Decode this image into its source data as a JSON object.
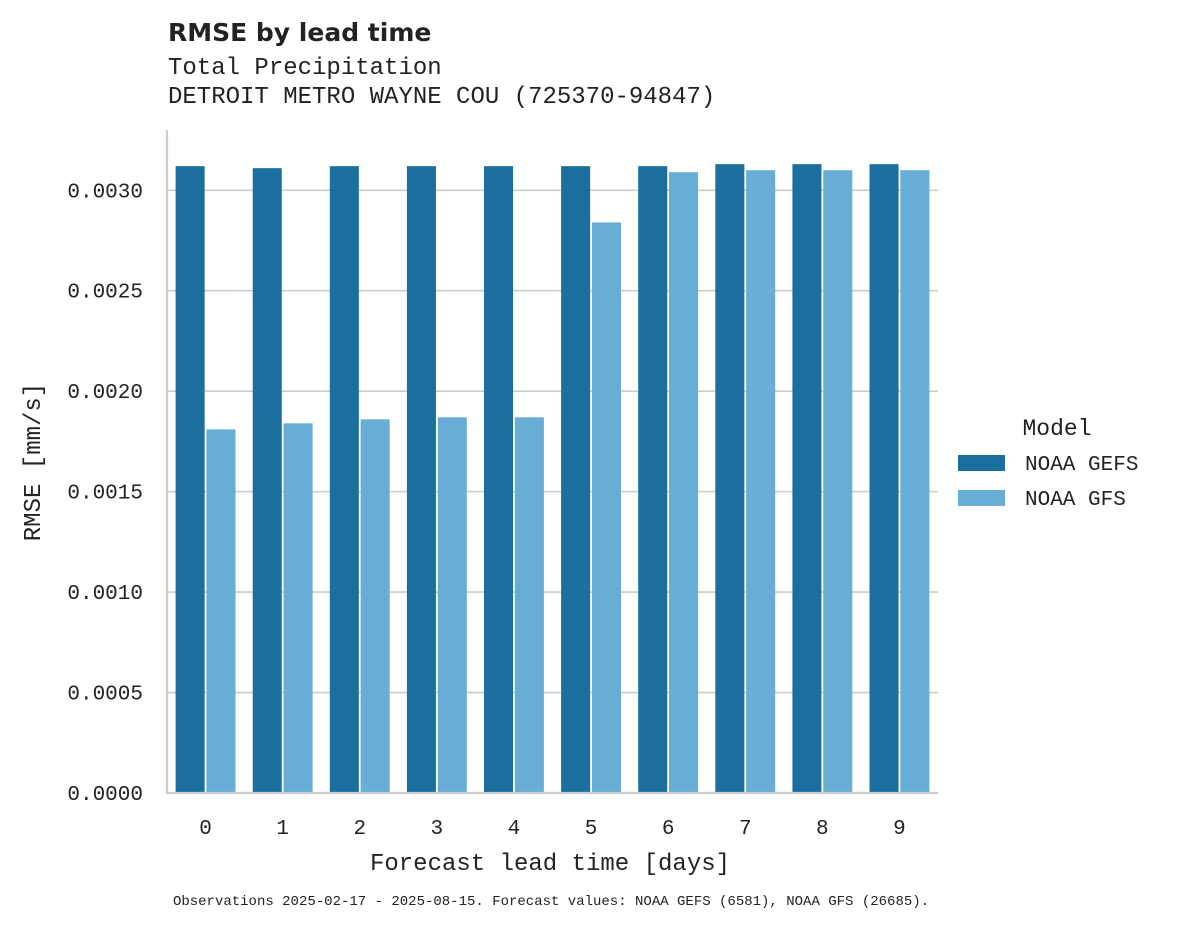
{
  "chart_data": {
    "type": "bar",
    "title": "RMSE by lead time",
    "subtitle_lines": [
      "Total Precipitation",
      "DETROIT METRO WAYNE COU (725370-94847)"
    ],
    "xlabel": "Forecast lead time [days]",
    "ylabel": "RMSE [mm/s]",
    "ylim": [
      0,
      0.0033
    ],
    "yticks": [
      "0.0000",
      "0.0005",
      "0.0010",
      "0.0015",
      "0.0020",
      "0.0025",
      "0.0030"
    ],
    "categories": [
      "0",
      "1",
      "2",
      "3",
      "4",
      "5",
      "6",
      "7",
      "8",
      "9"
    ],
    "grid": true,
    "legend": {
      "title": "Model",
      "placement": "right"
    },
    "series": [
      {
        "name": "NOAA GEFS",
        "color": "#1a6f9f",
        "values": [
          0.00312,
          0.00311,
          0.00312,
          0.00312,
          0.00312,
          0.00312,
          0.00312,
          0.00313,
          0.00313,
          0.00313
        ]
      },
      {
        "name": "NOAA GFS",
        "color": "#67add6",
        "values": [
          0.00181,
          0.00184,
          0.00186,
          0.00187,
          0.00187,
          0.00284,
          0.00309,
          0.0031,
          0.0031,
          0.0031
        ]
      }
    ],
    "footnote": "Observations 2025-02-17 - 2025-08-15. Forecast values: NOAA GEFS (6581), NOAA GFS (26685)."
  }
}
